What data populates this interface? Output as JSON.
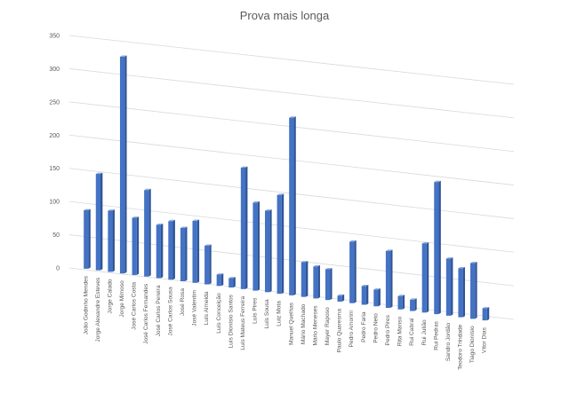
{
  "chart_data": {
    "type": "bar",
    "title": "Prova mais longa",
    "xlabel": "",
    "ylabel": "",
    "ylim": [
      0,
      350
    ],
    "yticks": [
      0,
      50,
      100,
      150,
      200,
      250,
      300,
      350
    ],
    "grid": true,
    "legend": "none",
    "style": "3d-perspective",
    "categories": [
      "João Godinho Mendes",
      "Jorge Alexandre Esteves",
      "Jorge Calado",
      "Jorge Mimoso",
      "José Carlos Costa",
      "José Carlos Fernandes",
      "José Carlos Pereira",
      "José Carlos Sousa",
      "José Rosa",
      "José Valentim",
      "Luís Almeida",
      "Luís Conceição",
      "Luís Dionísio Santos",
      "Luís Mateus Ferreira",
      "Luís Pires",
      "Luís Sousa",
      "Luiz Mota",
      "Manuel Quelhas",
      "Mário Machado",
      "Mário Meneses",
      "Mayer Raposo",
      "Paulo Quaresma",
      "Pedro Amorim",
      "Pedro Faria",
      "Pedro Neto",
      "Pedro Pires",
      "Rita Manso",
      "Rui Cabral",
      "Rui Julião",
      "Rui Pedras",
      "Sandro Jordão",
      "Teodoro Trindade",
      "Tiago Dionísio",
      "Vítor Dias"
    ],
    "values": [
      88,
      145,
      92,
      326,
      86,
      130,
      80,
      88,
      80,
      93,
      58,
      17,
      14,
      182,
      132,
      122,
      148,
      266,
      52,
      48,
      46,
      9,
      92,
      28,
      25,
      85,
      20,
      17,
      103,
      197,
      85,
      73,
      83,
      18
    ],
    "colors": {
      "bar": "#4472C4",
      "bar_side": "#2F5597",
      "bar_top": "#8FAADC",
      "grid": "#D9D9D9",
      "text": "#595959"
    }
  }
}
